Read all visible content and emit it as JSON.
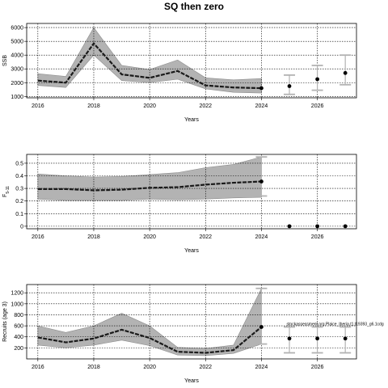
{
  "figure": {
    "title": "SQ then zero"
  },
  "chart_data": [
    {
      "type": "line",
      "id": "ssb",
      "xlabel": "Years",
      "ylabel": "SSB",
      "xlim": [
        2015.6,
        2027.4
      ],
      "ylim": [
        900,
        6300
      ],
      "xticks": [
        2016,
        2018,
        2020,
        2022,
        2024,
        2026
      ],
      "yticks": [
        1000,
        2000,
        3000,
        4000,
        5000,
        6000
      ],
      "grid": true,
      "history": {
        "x": [
          2016,
          2017,
          2018,
          2019,
          2020,
          2021,
          2022,
          2023,
          2024
        ],
        "median": [
          2150,
          2000,
          4850,
          2600,
          2350,
          2850,
          1800,
          1650,
          1600
        ],
        "lower": [
          1800,
          1650,
          4000,
          2150,
          2000,
          2250,
          1550,
          1300,
          1250
        ],
        "upper": [
          2650,
          2450,
          6000,
          3250,
          2950,
          3650,
          2350,
          2200,
          2300
        ]
      },
      "projection": {
        "x": [
          2025,
          2026,
          2027
        ],
        "median": [
          1750,
          2250,
          2700
        ],
        "lower": [
          1150,
          1450,
          1850
        ],
        "upper": [
          2550,
          3250,
          4000
        ]
      },
      "annotations": []
    },
    {
      "type": "line",
      "id": "f",
      "xlabel": "Years",
      "ylabel": "F",
      "ylabel_sub": "5-11",
      "xlim": [
        2015.6,
        2027.4
      ],
      "ylim": [
        -0.02,
        0.57
      ],
      "xticks": [
        2016,
        2018,
        2020,
        2022,
        2024,
        2026
      ],
      "yticks": [
        0.0,
        0.1,
        0.2,
        0.3,
        0.4,
        0.5
      ],
      "grid": true,
      "history": {
        "x": [
          2016,
          2017,
          2018,
          2019,
          2020,
          2021,
          2022,
          2023,
          2024
        ],
        "median": [
          0.295,
          0.295,
          0.285,
          0.29,
          0.305,
          0.31,
          0.33,
          0.345,
          0.355
        ],
        "lower": [
          0.215,
          0.205,
          0.205,
          0.205,
          0.215,
          0.21,
          0.215,
          0.225,
          0.23
        ],
        "upper": [
          0.415,
          0.4,
          0.39,
          0.395,
          0.41,
          0.425,
          0.465,
          0.49,
          0.55
        ]
      },
      "projection": {
        "x": [
          2025,
          2026,
          2027
        ],
        "median": [
          0.0,
          0.0,
          0.0
        ],
        "lower": [
          0.0,
          0.0,
          0.0
        ],
        "upper": [
          0.0,
          0.0,
          0.0
        ]
      },
      "extra_bar": {
        "x": 2024,
        "lower": 0.24,
        "upper": 0.55
      },
      "annotations": []
    },
    {
      "type": "line",
      "id": "recruits",
      "xlabel": "Years",
      "ylabel": "Recruits (age 3)",
      "xlim": [
        2015.6,
        2027.4
      ],
      "ylim": [
        0,
        1350
      ],
      "xticks": [
        2016,
        2018,
        2020,
        2022,
        2024,
        2026
      ],
      "yticks": [
        200,
        400,
        600,
        800,
        1000,
        1200
      ],
      "grid": true,
      "history": {
        "x": [
          2016,
          2017,
          2018,
          2019,
          2020,
          2021,
          2022,
          2023,
          2024
        ],
        "median": [
          390,
          300,
          370,
          530,
          380,
          130,
          110,
          160,
          580
        ],
        "lower": [
          250,
          200,
          250,
          340,
          240,
          70,
          60,
          100,
          270
        ],
        "upper": [
          600,
          480,
          600,
          830,
          600,
          210,
          190,
          250,
          1280
        ]
      },
      "projection": {
        "x": [
          2025,
          2026,
          2027
        ],
        "median": [
          370,
          370,
          370
        ],
        "lower": [
          110,
          110,
          110
        ],
        "upper": [
          580,
          580,
          580
        ]
      },
      "extra_bar": {
        "x": 2024,
        "lower": 270,
        "upper": 1280
      },
      "annotations": [
        {
          "text": "stockassessment.org.Plaice_Iberia.t1.t19393_g6.1cdg",
          "x": 2024.9,
          "y": 610
        }
      ]
    }
  ]
}
